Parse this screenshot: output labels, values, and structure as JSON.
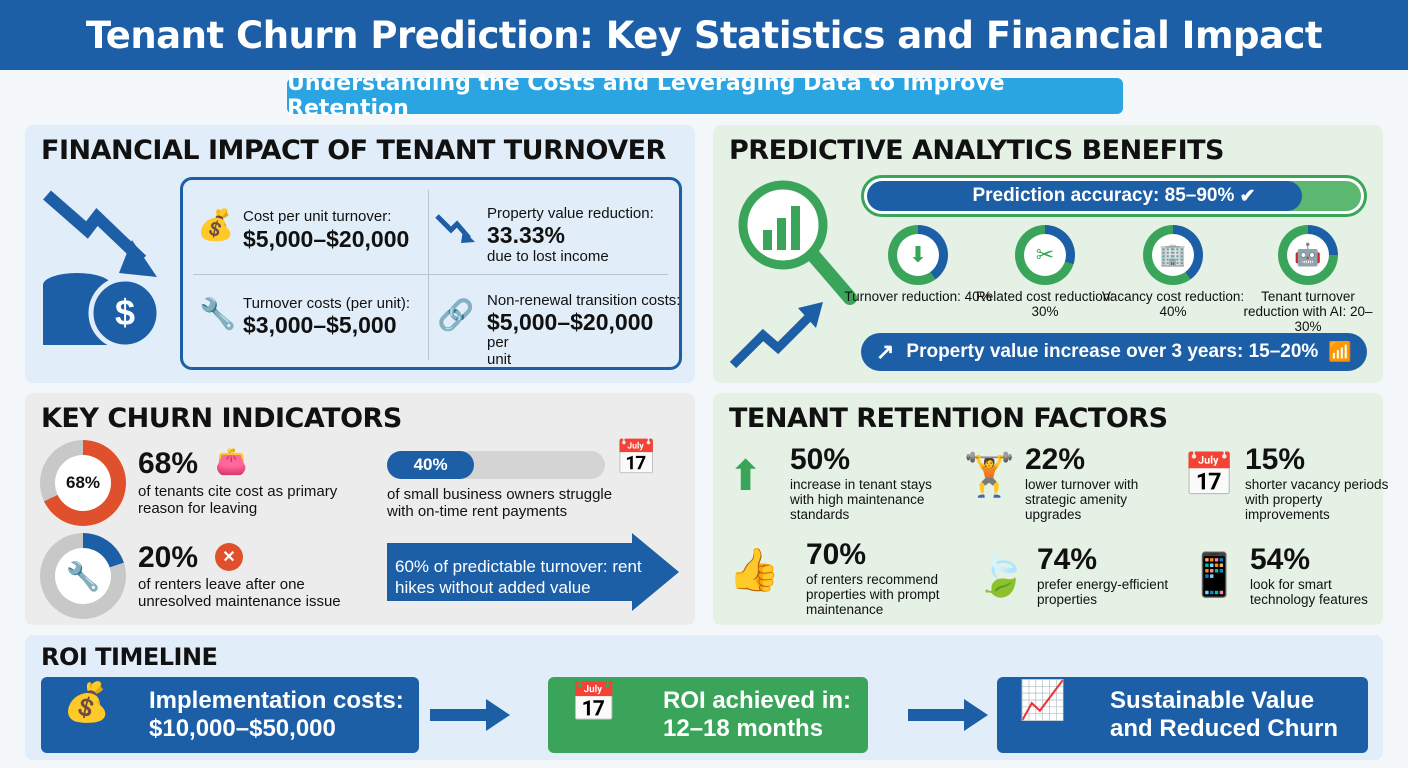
{
  "header": {
    "title": "Tenant Churn Prediction: Key Statistics and Financial Impact",
    "subtitle": "Understanding the Costs and Leveraging Data to Improve Retention"
  },
  "financial": {
    "title": "FINANCIAL IMPACT OF TENANT TURNOVER",
    "items": [
      {
        "label": "Cost per unit turnover:",
        "value": "$5,000–$20,000",
        "note": "",
        "icon": "money-bag-icon"
      },
      {
        "label": "Property value reduction:",
        "value": "33.33%",
        "note": "due to lost income",
        "icon": "trend-down-icon"
      },
      {
        "label": "Turnover costs (per unit):",
        "value": "$3,000–$5,000",
        "note": "",
        "icon": "tools-icon"
      },
      {
        "label": "Non-renewal transition costs:",
        "value": "$5,000–$20,000",
        "note": "per unit",
        "icon": "broken-link-icon"
      }
    ]
  },
  "predictive": {
    "title": "PREDICTIVE ANALYTICS BENEFITS",
    "accuracy": "Prediction accuracy: 85–90%",
    "accuracy_fill": 0.88,
    "rings": [
      {
        "label": "Turnover reduction: 40%",
        "value": 40,
        "icon": "arrow-down-icon"
      },
      {
        "label": "Related cost reduction: 30%",
        "value": 30,
        "icon": "scissors-icon"
      },
      {
        "label": "Vacancy cost reduction: 40%",
        "value": 40,
        "icon": "building-icon"
      },
      {
        "label": "Tenant turnover reduction with AI: 20–30%",
        "value": 25,
        "icon": "robot-icon"
      }
    ],
    "property": "Property value increase over 3 years: 15–20%"
  },
  "indicators": {
    "title": "KEY CHURN INDICATORS",
    "cost": {
      "pct": "68%",
      "ring": "68%",
      "value": 68,
      "text": "of tenants cite cost as primary reason for leaving"
    },
    "maint": {
      "pct": "20%",
      "value": 20,
      "text": "of renters leave after one unresolved maintenance issue"
    },
    "small": {
      "pct": "40%",
      "value": 40,
      "text": "of small business owners struggle with on-time rent payments"
    },
    "arrow": "60% of predictable turnover: rent hikes without added value"
  },
  "retention": {
    "title": "TENANT RETENTION FACTORS",
    "items": [
      {
        "pct": "50%",
        "text": "increase in tenant stays with high maintenance standards"
      },
      {
        "pct": "22%",
        "text": "lower turnover with strategic amenity upgrades"
      },
      {
        "pct": "15%",
        "text": "shorter vacancy periods with property improvements"
      },
      {
        "pct": "70%",
        "text": "of renters recommend properties with prompt maintenance"
      },
      {
        "pct": "74%",
        "text": "prefer energy-efficient properties"
      },
      {
        "pct": "54%",
        "text": "look for smart technology features"
      }
    ]
  },
  "roi": {
    "title": "ROI TIMELINE",
    "steps": [
      {
        "l1": "Implementation costs:",
        "l2": "$10,000–$50,000"
      },
      {
        "l1": "ROI achieved in:",
        "l2": "12–18 months"
      },
      {
        "l1": "Sustainable Value",
        "l2": "and Reduced Churn"
      }
    ]
  },
  "colors": {
    "blue": "#1d5fa6",
    "green": "#3aa55a",
    "red": "#e0502d",
    "light_blue": "#2aa5e2"
  }
}
